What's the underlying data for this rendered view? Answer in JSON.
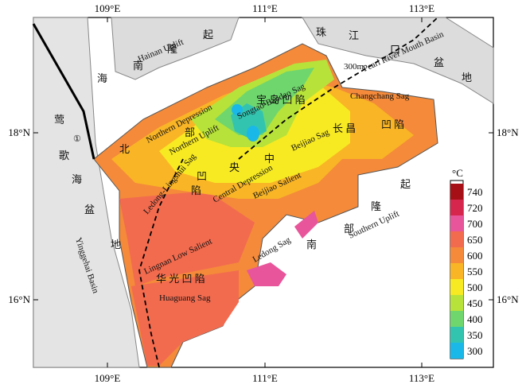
{
  "map": {
    "x_ticks": [
      "109°E",
      "111°E",
      "113°E"
    ],
    "y_ticks": [
      "18°N",
      "16°N"
    ],
    "labels": [
      "Hainan Uplift",
      "Pearl River Mouth Basin",
      "Northern Depression",
      "Northern Uplift",
      "Songtao-Baodao Sag",
      "Changchang Sag",
      "Beijiao Sag",
      "Beijiao Salient",
      "Central Depression",
      "Ledong-Lingshui Sag",
      "Lingnan Low Salient",
      "Ledong Sag",
      "Southern Uplift",
      "Huaguang Sag",
      "Yinggehai Basin",
      "300m",
      "①"
    ],
    "cn_labels": [
      "海",
      "南",
      "隆",
      "起",
      "珠",
      "江",
      "口",
      "盆",
      "地",
      "莺",
      "歌",
      "海",
      "盆",
      "地",
      "华 光 凹 陷",
      "南",
      "部",
      "隆",
      "起",
      "长 昌",
      "凹 陷",
      "宝 岛 凹 陷",
      "北",
      "部",
      "中",
      "央",
      "凹",
      "陷"
    ],
    "legend": {
      "unit": "°C",
      "ticks": [
        {
          "value": 740,
          "color": "#a50f15"
        },
        {
          "value": 720,
          "color": "#d7264d"
        },
        {
          "value": 700,
          "color": "#e8559a"
        },
        {
          "value": 650,
          "color": "#f26b4f"
        },
        {
          "value": 600,
          "color": "#f48a3a"
        },
        {
          "value": 550,
          "color": "#f9b526"
        },
        {
          "value": 500,
          "color": "#f7ea22"
        },
        {
          "value": 450,
          "color": "#b7e23a"
        },
        {
          "value": 400,
          "color": "#6fd66e"
        },
        {
          "value": 350,
          "color": "#33c4b0"
        },
        {
          "value": 300,
          "color": "#1ab8e8"
        }
      ]
    }
  }
}
